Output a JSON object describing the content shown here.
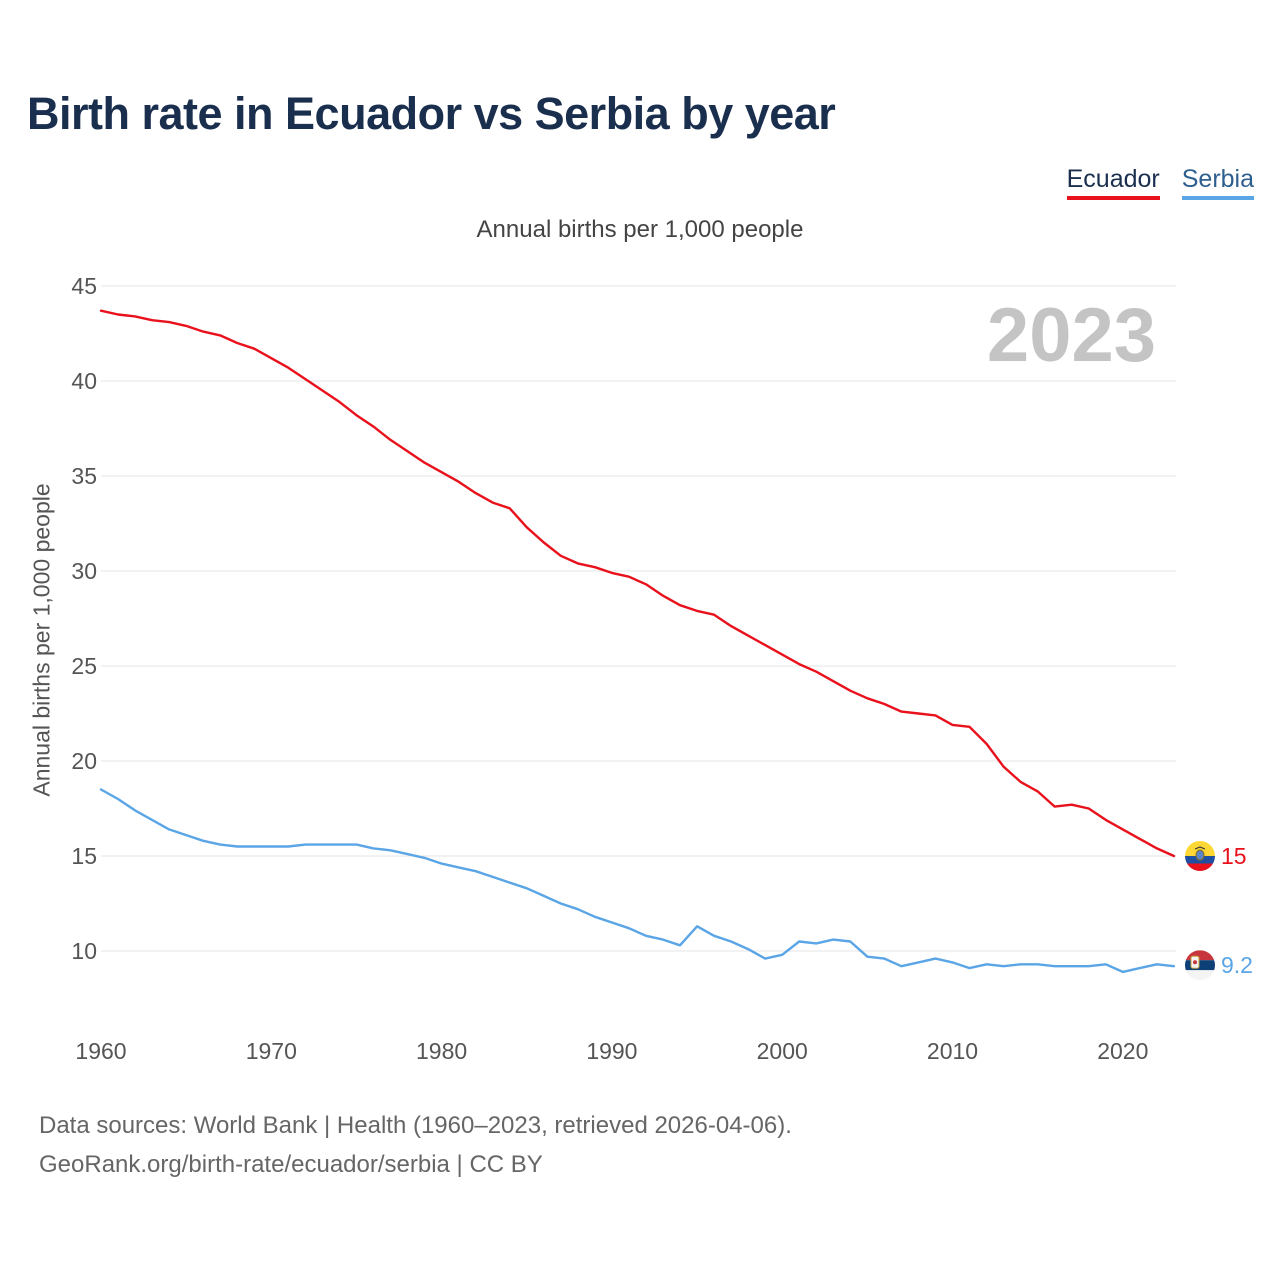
{
  "title": "Birth rate in Ecuador vs Serbia by year",
  "subtitle": "Annual births per 1,000 people",
  "year_display": "2023",
  "sources_line1": "Data sources: World Bank | Health (1960–2023, retrieved 2026-04-06).",
  "sources_line2": "GeoRank.org/birth-rate/ecuador/serbia | CC BY",
  "colors": {
    "ecuador": "#e8111c",
    "serbia": "#5aa5e6",
    "grid": "#e6e6e6",
    "tick": "#555555"
  },
  "chart_data": {
    "type": "line",
    "title": "Birth rate in Ecuador vs Serbia by year",
    "ylabel": "Annual births per 1,000 people",
    "xlabel": "",
    "xlim": [
      1960,
      2024
    ],
    "ylim": [
      7,
      46
    ],
    "yticks": [
      10,
      15,
      20,
      25,
      30,
      35,
      40,
      45
    ],
    "xticks": [
      1960,
      1970,
      1980,
      1990,
      2000,
      2010,
      2020
    ],
    "grid": true,
    "legend_position": "top-right",
    "x": [
      1960,
      1961,
      1962,
      1963,
      1964,
      1965,
      1966,
      1967,
      1968,
      1969,
      1970,
      1971,
      1972,
      1973,
      1974,
      1975,
      1976,
      1977,
      1978,
      1979,
      1980,
      1981,
      1982,
      1983,
      1984,
      1985,
      1986,
      1987,
      1988,
      1989,
      1990,
      1991,
      1992,
      1993,
      1994,
      1995,
      1996,
      1997,
      1998,
      1999,
      2000,
      2001,
      2002,
      2003,
      2004,
      2005,
      2006,
      2007,
      2008,
      2009,
      2010,
      2011,
      2012,
      2013,
      2014,
      2015,
      2016,
      2017,
      2018,
      2019,
      2020,
      2021,
      2022,
      2023
    ],
    "series": [
      {
        "name": "Ecuador",
        "end_label": "15",
        "values": [
          43.7,
          43.5,
          43.4,
          43.2,
          43.1,
          42.9,
          42.6,
          42.4,
          42.0,
          41.7,
          41.2,
          40.7,
          40.1,
          39.5,
          38.9,
          38.2,
          37.6,
          36.9,
          36.3,
          35.7,
          35.2,
          34.7,
          34.1,
          33.6,
          33.3,
          32.3,
          31.5,
          30.8,
          30.4,
          30.2,
          29.9,
          29.7,
          29.3,
          28.7,
          28.2,
          27.9,
          27.7,
          27.1,
          26.6,
          26.1,
          25.6,
          25.1,
          24.7,
          24.2,
          23.7,
          23.3,
          23.0,
          22.6,
          22.5,
          22.4,
          21.9,
          21.8,
          20.9,
          19.7,
          18.9,
          18.4,
          17.6,
          17.7,
          17.5,
          16.9,
          16.4,
          15.9,
          15.4,
          15.0
        ]
      },
      {
        "name": "Serbia",
        "end_label": "9.2",
        "values": [
          18.5,
          18.0,
          17.4,
          16.9,
          16.4,
          16.1,
          15.8,
          15.6,
          15.5,
          15.5,
          15.5,
          15.5,
          15.6,
          15.6,
          15.6,
          15.6,
          15.4,
          15.3,
          15.1,
          14.9,
          14.6,
          14.4,
          14.2,
          13.9,
          13.6,
          13.3,
          12.9,
          12.5,
          12.2,
          11.8,
          11.5,
          11.2,
          10.8,
          10.6,
          10.3,
          11.3,
          10.8,
          10.5,
          10.1,
          9.6,
          9.8,
          10.5,
          10.4,
          10.6,
          10.5,
          9.7,
          9.6,
          9.2,
          9.4,
          9.6,
          9.4,
          9.1,
          9.3,
          9.2,
          9.3,
          9.3,
          9.2,
          9.2,
          9.2,
          9.3,
          8.9,
          9.1,
          9.3,
          9.2
        ]
      }
    ]
  }
}
